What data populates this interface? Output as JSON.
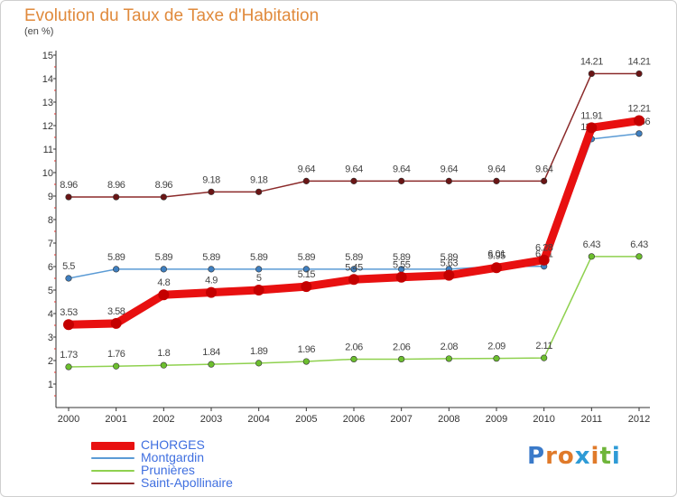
{
  "title": "Evolution du Taux de Taxe d'Habitation",
  "subtitle": "(en %)",
  "logo": {
    "text": "Proxiti",
    "letters": [
      "P",
      "r",
      "o",
      "x",
      "i",
      "t",
      "i"
    ],
    "colors": [
      "#3a7ac9",
      "#e07a2a",
      "#e07a2a",
      "#2e9bd6",
      "#e07a2a",
      "#6fb53a",
      "#2e9bd6"
    ]
  },
  "chart_data": {
    "type": "line",
    "categories": [
      "2000",
      "2001",
      "2002",
      "2003",
      "2004",
      "2005",
      "2006",
      "2007",
      "2008",
      "2009",
      "2010",
      "2011",
      "2012"
    ],
    "ylim": [
      1,
      15
    ],
    "yticks": [
      1,
      2,
      3,
      4,
      5,
      6,
      7,
      8,
      9,
      10,
      11,
      12,
      13,
      14,
      15
    ],
    "grid": false,
    "legend": "bottom-left",
    "series": [
      {
        "name": "Saint-Apollinaire",
        "color": "#8b2a2a",
        "marker": "#6a1515",
        "values": [
          8.96,
          8.96,
          8.96,
          9.18,
          9.18,
          9.64,
          9.64,
          9.64,
          9.64,
          9.64,
          9.64,
          14.21,
          14.21
        ],
        "labels": [
          "8.96",
          "8.96",
          "8.96",
          "9.18",
          "9.18",
          "9.64",
          "9.64",
          "9.64",
          "9.64",
          "9.64",
          "9.64",
          "14.21",
          "14.21"
        ]
      },
      {
        "name": "Montgardin",
        "color": "#5b9bd5",
        "marker": "#3f7fc0",
        "values": [
          5.5,
          5.89,
          5.89,
          5.89,
          5.89,
          5.89,
          5.89,
          5.89,
          5.89,
          6.01,
          6.01,
          11.43,
          11.66
        ],
        "labels": [
          "5.5",
          "5.89",
          "5.89",
          "5.89",
          "5.89",
          "5.89",
          "5.89",
          "5.89",
          "5.89",
          "6.01",
          "6.01",
          "11.43",
          "11.66"
        ]
      },
      {
        "name": "Prunières",
        "color": "#8fd14f",
        "marker": "#6cbf2e",
        "values": [
          1.73,
          1.76,
          1.8,
          1.84,
          1.89,
          1.96,
          2.06,
          2.06,
          2.08,
          2.09,
          2.11,
          6.43,
          6.43
        ],
        "labels": [
          "1.73",
          "1.76",
          "1.8",
          "1.84",
          "1.89",
          "1.96",
          "2.06",
          "2.06",
          "2.08",
          "2.09",
          "2.11",
          "6.43",
          "6.43"
        ]
      },
      {
        "name": "CHORGES",
        "color": "#e81010",
        "marker": "#c40000",
        "values": [
          3.53,
          3.58,
          4.8,
          4.9,
          5,
          5.15,
          5.45,
          5.55,
          5.63,
          5.95,
          6.28,
          11.91,
          12.21
        ],
        "labels": [
          "3.53",
          "3.58",
          "4.8",
          "4.9",
          "5",
          "5.15",
          "5.45",
          "5.55",
          "5.63",
          "5.95",
          "6.28",
          "11.91",
          "12.21"
        ]
      }
    ]
  },
  "legend_items": [
    {
      "name": "CHORGES",
      "color": "#e81010",
      "text_color": "#3f6fe0"
    },
    {
      "name": "Montgardin",
      "color": "#5b9bd5",
      "text_color": "#3f6fe0"
    },
    {
      "name": "Prunières",
      "color": "#8fd14f",
      "text_color": "#3f6fe0"
    },
    {
      "name": "Saint-Apollinaire",
      "color": "#8b2a2a",
      "text_color": "#3f6fe0"
    }
  ]
}
